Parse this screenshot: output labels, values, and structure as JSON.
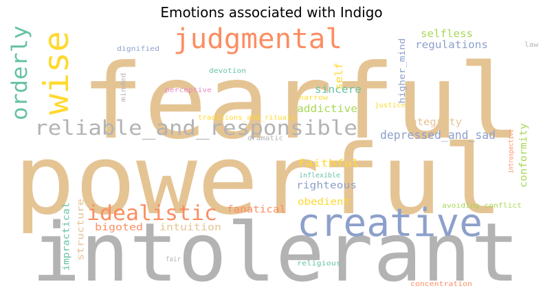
{
  "title": "Emotions associated with Indigo",
  "chart_data": {
    "type": "wordcloud",
    "title": "Emotions associated with Indigo",
    "palette": {
      "tan": "#e5c494",
      "gray": "#b3b3b3",
      "blue": "#8da0cb",
      "orange": "#fc8d62",
      "yellow": "#ffd92f",
      "teal": "#66c2a5",
      "green": "#a6d854",
      "pink": "#e78ac3"
    },
    "words": [
      {
        "text": "fearful",
        "color": "tan"
      },
      {
        "text": "powerful",
        "color": "tan"
      },
      {
        "text": "intolerant",
        "color": "gray"
      },
      {
        "text": "creative",
        "color": "blue"
      },
      {
        "text": "wise",
        "color": "yellow"
      },
      {
        "text": "judgmental",
        "color": "orange"
      },
      {
        "text": "reliable_and_responsible",
        "color": "gray"
      },
      {
        "text": "idealistic",
        "color": "orange"
      },
      {
        "text": "orderly",
        "color": "teal"
      },
      {
        "text": "depressed_and_sad",
        "color": "blue"
      },
      {
        "text": "selfless",
        "color": "green"
      },
      {
        "text": "regulations",
        "color": "blue"
      },
      {
        "text": "sincere",
        "color": "teal"
      },
      {
        "text": "addictive",
        "color": "green"
      },
      {
        "text": "integrity",
        "color": "tan"
      },
      {
        "text": "faithful",
        "color": "yellow"
      },
      {
        "text": "righteous",
        "color": "blue"
      },
      {
        "text": "obedient",
        "color": "yellow"
      },
      {
        "text": "fanatical",
        "color": "orange"
      },
      {
        "text": "bigoted",
        "color": "orange"
      },
      {
        "text": "intuition",
        "color": "tan"
      },
      {
        "text": "conformity",
        "color": "green"
      },
      {
        "text": "self",
        "color": "yellow"
      },
      {
        "text": "higher_mind",
        "color": "blue"
      },
      {
        "text": "dignified",
        "color": "blue"
      },
      {
        "text": "devotion",
        "color": "teal"
      },
      {
        "text": "minded",
        "color": "gray"
      },
      {
        "text": "perceptive",
        "color": "pink"
      },
      {
        "text": "narrow",
        "color": "yellow"
      },
      {
        "text": "justice",
        "color": "yellow"
      },
      {
        "text": "traditions_and_rituals",
        "color": "yellow"
      },
      {
        "text": "dramatic",
        "color": "gray"
      },
      {
        "text": "introspective",
        "color": "orange"
      },
      {
        "text": "law",
        "color": "gray"
      },
      {
        "text": "inflexible",
        "color": "teal"
      },
      {
        "text": "impractical",
        "color": "teal"
      },
      {
        "text": "structure",
        "color": "tan"
      },
      {
        "text": "avoiding_conflict",
        "color": "green"
      },
      {
        "text": "fair",
        "color": "gray"
      },
      {
        "text": "religious",
        "color": "teal"
      },
      {
        "text": "concentration",
        "color": "orange"
      }
    ]
  }
}
